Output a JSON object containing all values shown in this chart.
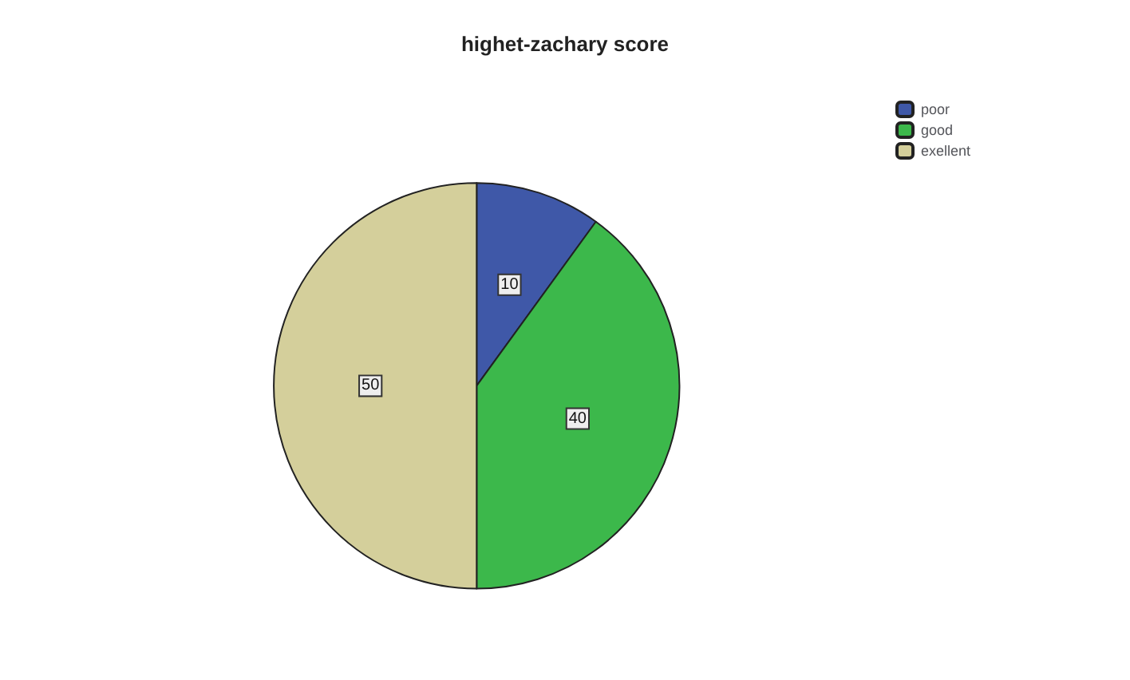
{
  "chart_data": {
    "type": "pie",
    "title": "highet-zachary score",
    "categories": [
      "poor",
      "good",
      "exellent"
    ],
    "values": [
      10,
      40,
      50
    ],
    "colors": [
      "#3f58a8",
      "#3cb84b",
      "#d4cf9b"
    ],
    "data_labels": true,
    "legend": "top right"
  }
}
